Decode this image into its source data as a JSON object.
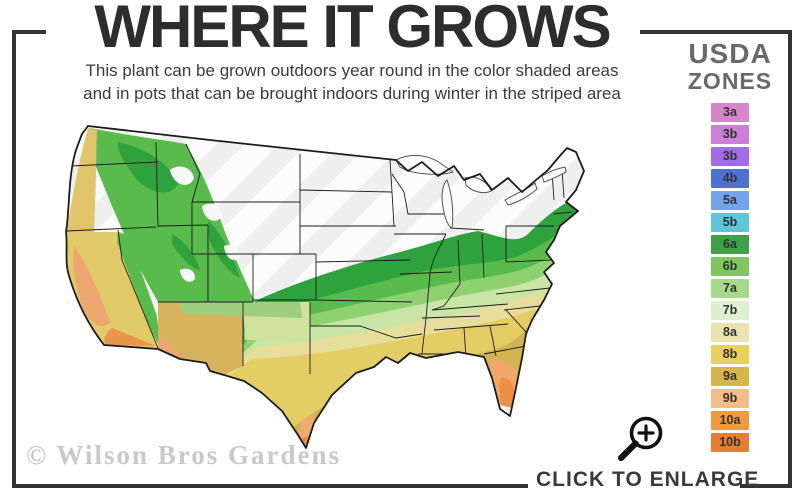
{
  "header": {
    "title": "WHERE IT GROWS",
    "subtitle_line1": "This plant can be grown outdoors year round in the color shaded areas",
    "subtitle_line2": "and in pots that can be brought indoors during winter in the striped area"
  },
  "legend": {
    "title_line1": "USDA",
    "title_line2": "ZONES",
    "zones": [
      {
        "label": "3a",
        "color": "#d786ca"
      },
      {
        "label": "3b",
        "color": "#cb7fd6"
      },
      {
        "label": "3b",
        "color": "#a16ce6"
      },
      {
        "label": "4b",
        "color": "#4e71d6"
      },
      {
        "label": "5a",
        "color": "#74a3ee"
      },
      {
        "label": "5b",
        "color": "#5ec6da"
      },
      {
        "label": "6a",
        "color": "#3ca245"
      },
      {
        "label": "6b",
        "color": "#7fc75d"
      },
      {
        "label": "7a",
        "color": "#a6d98a"
      },
      {
        "label": "7b",
        "color": "#e0efcf"
      },
      {
        "label": "8a",
        "color": "#ebe2ae"
      },
      {
        "label": "8b",
        "color": "#e7cf62"
      },
      {
        "label": "9a",
        "color": "#d5b64d"
      },
      {
        "label": "9b",
        "color": "#f2bd86"
      },
      {
        "label": "10a",
        "color": "#f0993f"
      },
      {
        "label": "10b",
        "color": "#e67e31"
      }
    ]
  },
  "footer": {
    "cta_label": "CLICK TO ENLARGE"
  },
  "watermark": "© Wilson Bros Gardens"
}
